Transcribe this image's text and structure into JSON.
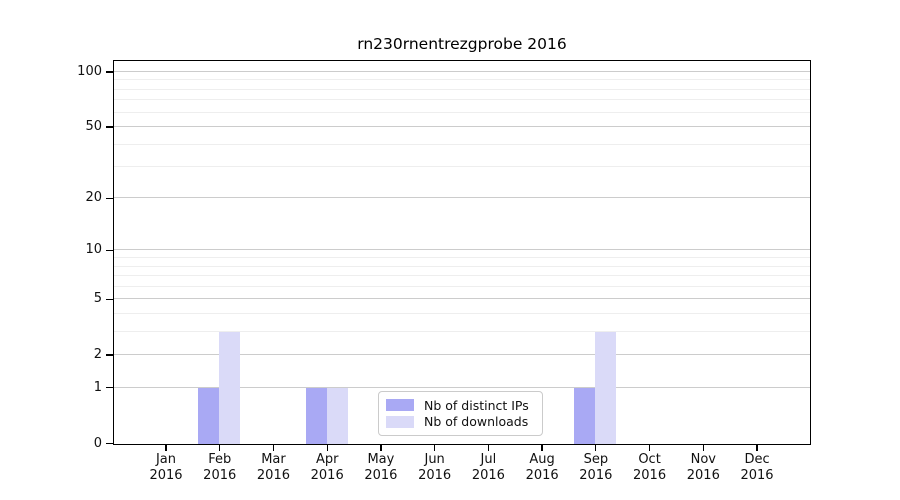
{
  "window": {
    "background": "#ffffff"
  },
  "chart_data": {
    "type": "bar",
    "title": "rn230rnentrezgprobe 2016",
    "categories": [
      "Jan",
      "Feb",
      "Mar",
      "Apr",
      "May",
      "Jun",
      "Jul",
      "Aug",
      "Sep",
      "Oct",
      "Nov",
      "Dec"
    ],
    "year_label": "2016",
    "series": [
      {
        "name": "Nb of distinct IPs",
        "color": "#a9a9f4",
        "values": [
          0,
          1,
          0,
          1,
          0,
          0,
          0,
          0,
          1,
          0,
          0,
          0
        ]
      },
      {
        "name": "Nb of downloads",
        "color": "#dadaf8",
        "values": [
          0,
          3,
          0,
          1,
          0,
          0,
          0,
          0,
          3,
          0,
          0,
          0
        ]
      }
    ],
    "xlabel": "",
    "ylabel": "",
    "yscale": "log2(1+x)",
    "ytick_values": [
      0,
      1,
      2,
      5,
      10,
      20,
      50,
      100
    ],
    "minor_grid_values": [
      3,
      4,
      6,
      7,
      8,
      9,
      30,
      40,
      60,
      70,
      80,
      90
    ],
    "ylim": [
      0,
      114
    ],
    "grid": true,
    "legend": {
      "position": "bottom-center-inside"
    },
    "colors": {
      "major_grid": "#cccccc",
      "minor_grid": "#eeeeee",
      "axis": "#000000",
      "text": "#111111"
    }
  }
}
